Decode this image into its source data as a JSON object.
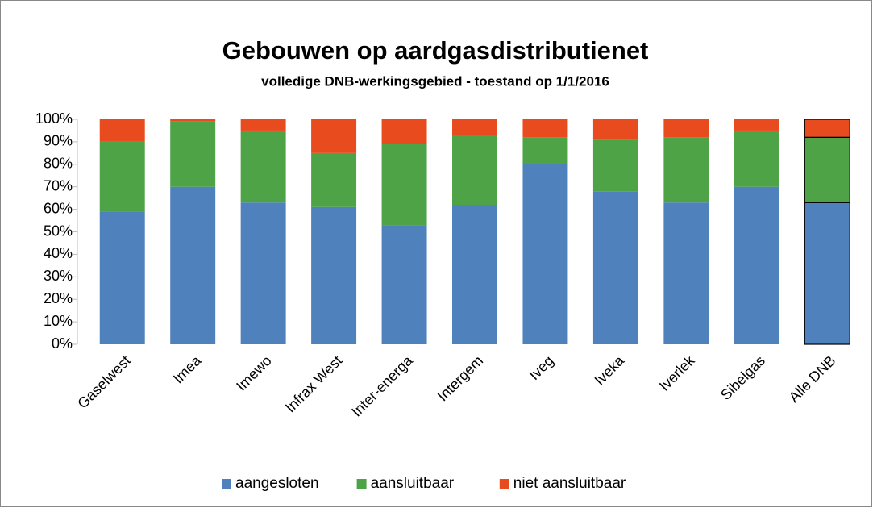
{
  "chart_data": {
    "type": "stacked_bar",
    "title": "Gebouwen op aardgasdistributienet",
    "subtitle": "volledige DNB-werkingsgebied - toestand op 1/1/2016",
    "categories": [
      "Gaselwest",
      "Imea",
      "Imewo",
      "Infrax West",
      "Inter-energa",
      "Intergem",
      "Iveg",
      "Iveka",
      "Iverlek",
      "Sibelgas",
      "Alle DNB"
    ],
    "series": [
      {
        "name": "aangesloten",
        "color": "#4f81bd",
        "values": [
          59,
          70,
          63,
          61,
          53,
          62,
          80,
          68,
          63,
          70,
          63
        ]
      },
      {
        "name": "aansluitbaar",
        "color": "#4ea346",
        "values": [
          31,
          29,
          32,
          24,
          36,
          31,
          12,
          23,
          29,
          25,
          29
        ]
      },
      {
        "name": "niet aansluitbaar",
        "color": "#e84c1e",
        "values": [
          10,
          1,
          5,
          15,
          11,
          7,
          8,
          9,
          8,
          5,
          8
        ]
      }
    ],
    "ylim": [
      0,
      100
    ],
    "yticks": [
      {
        "value": 0,
        "label": "0%"
      },
      {
        "value": 10,
        "label": "10%"
      },
      {
        "value": 20,
        "label": "20%"
      },
      {
        "value": 30,
        "label": "30%"
      },
      {
        "value": 40,
        "label": "40%"
      },
      {
        "value": 50,
        "label": "50%"
      },
      {
        "value": 60,
        "label": "60%"
      },
      {
        "value": 70,
        "label": "70%"
      },
      {
        "value": 80,
        "label": "80%"
      },
      {
        "value": 90,
        "label": "90%"
      },
      {
        "value": 100,
        "label": "100%"
      }
    ],
    "grid": false,
    "legend": "bottom"
  }
}
